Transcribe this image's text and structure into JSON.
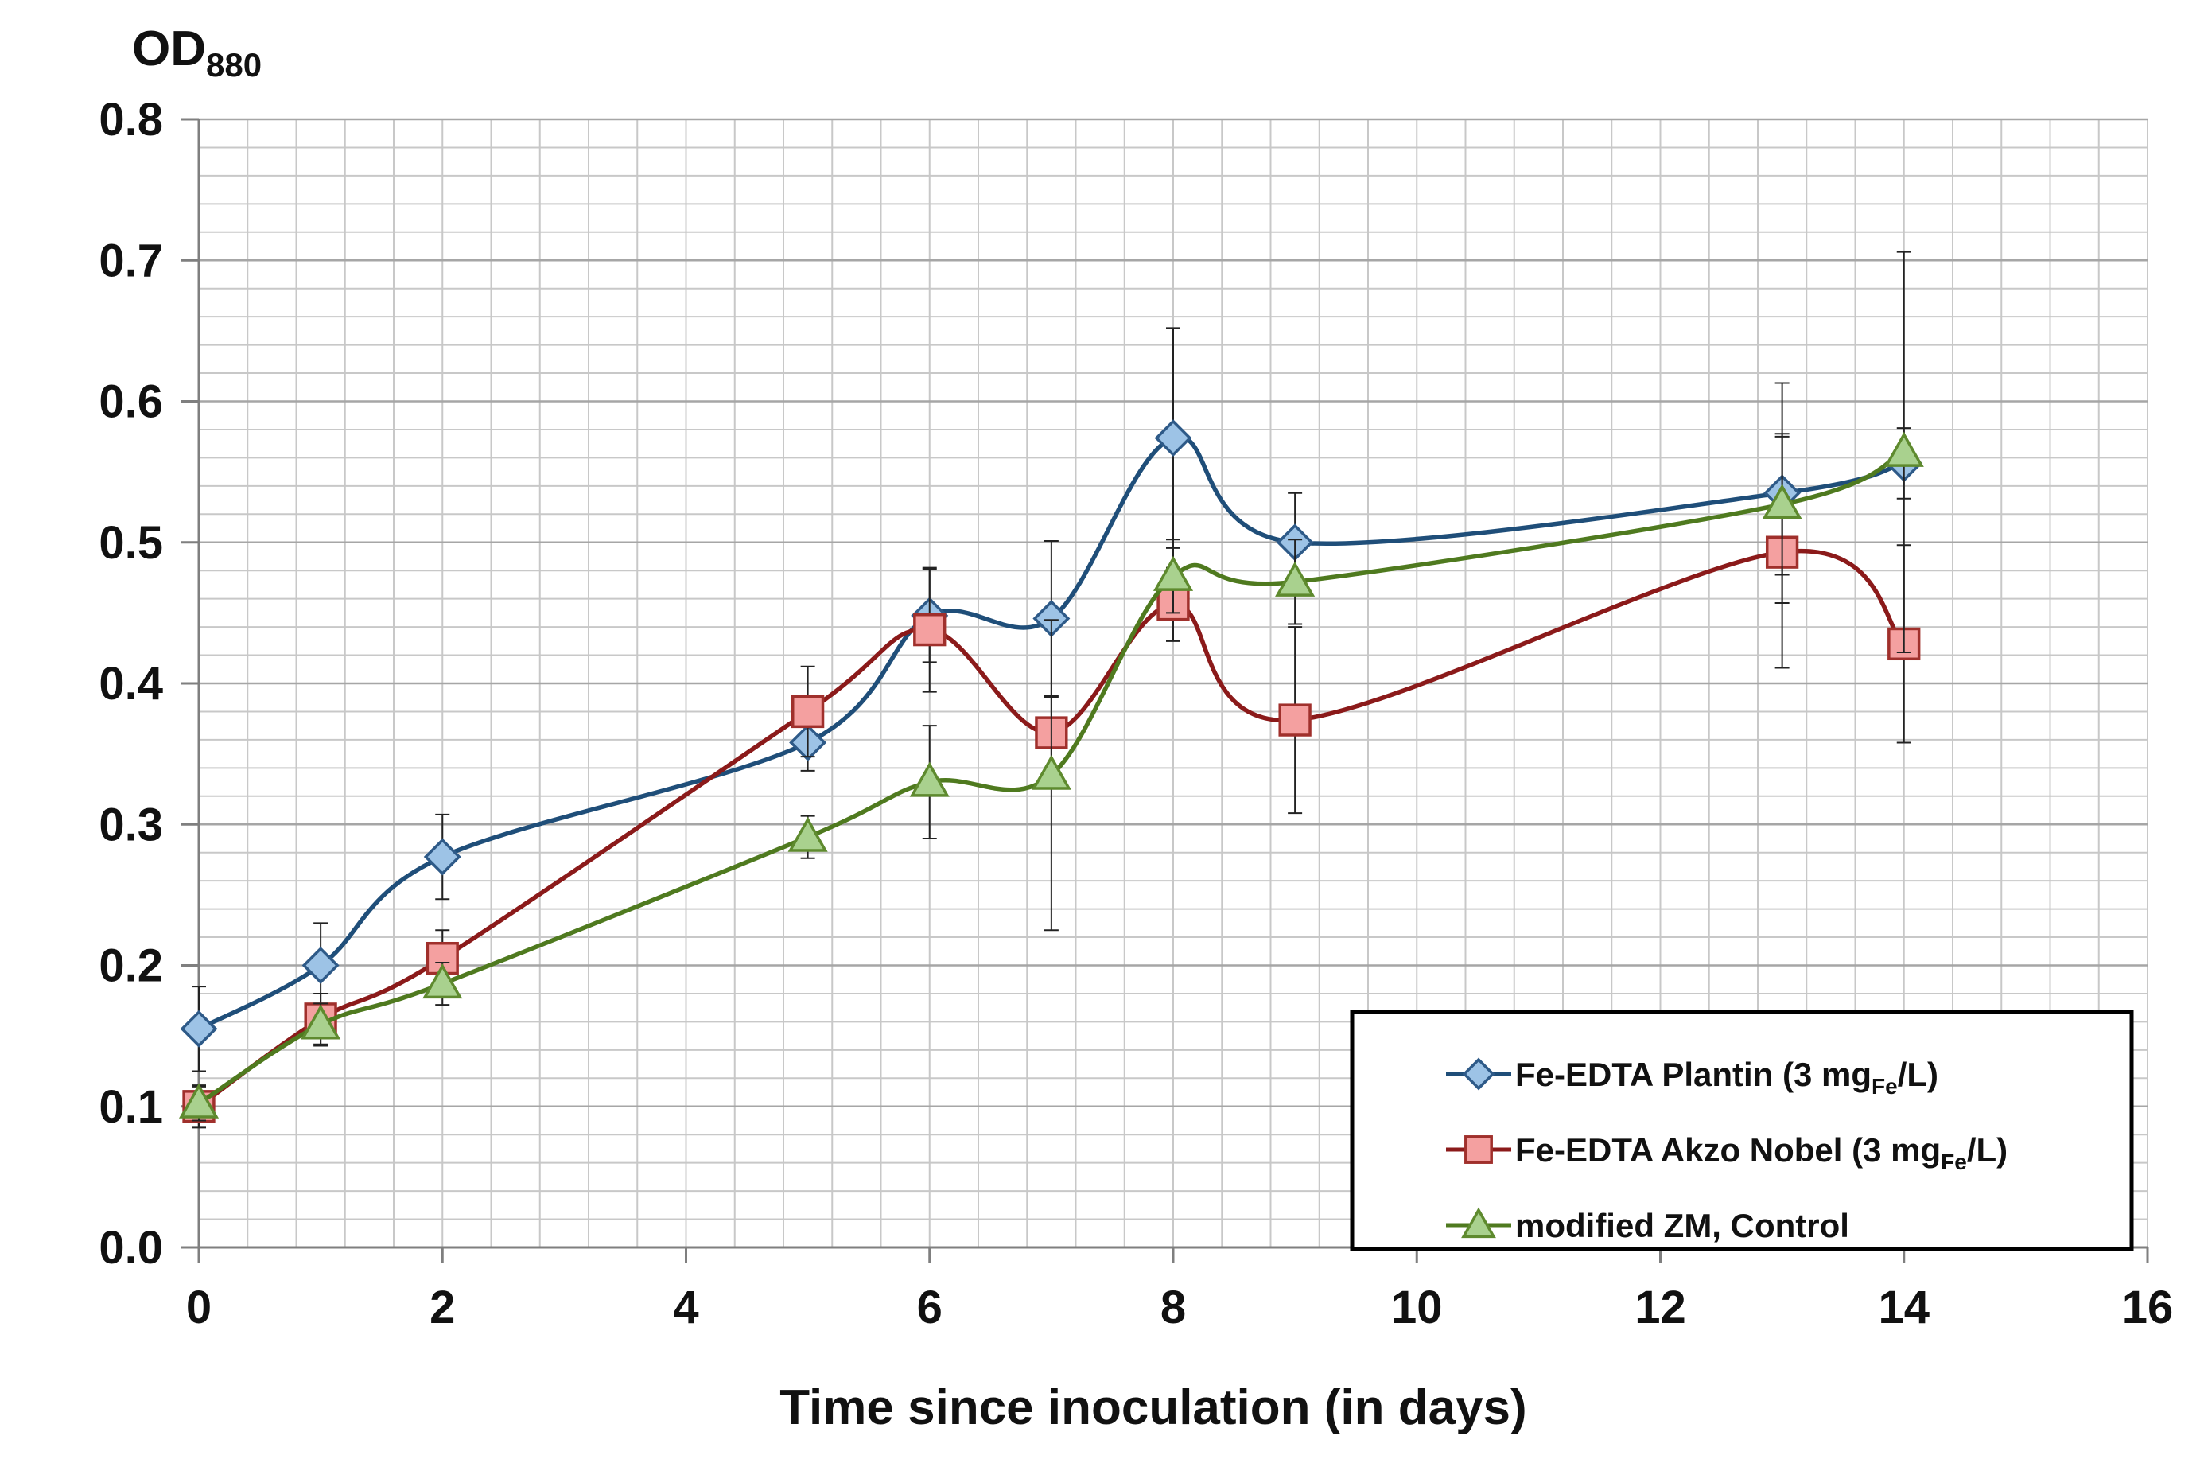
{
  "chart_data": {
    "type": "line",
    "title": "",
    "ylabel_main": "OD",
    "ylabel_sub": "880",
    "xlabel": "Time since inoculation (in days)",
    "xlim": [
      0,
      16
    ],
    "ylim": [
      0,
      0.8
    ],
    "x_ticks": [
      0,
      2,
      4,
      6,
      8,
      10,
      12,
      14,
      16
    ],
    "x_tick_labels": [
      "0",
      "2",
      "4",
      "6",
      "8",
      "10",
      "12",
      "14",
      "16"
    ],
    "y_ticks": [
      0,
      0.1,
      0.2,
      0.3,
      0.4,
      0.5,
      0.6,
      0.7,
      0.8
    ],
    "y_tick_labels": [
      "0.0",
      "0.1",
      "0.2",
      "0.3",
      "0.4",
      "0.5",
      "0.6",
      "0.7",
      "0.8"
    ],
    "grid": true,
    "x_minor_step": 0.4,
    "y_minor_step": 0.02,
    "legend_position": "bottom-right",
    "series": [
      {
        "name": "Fe-EDTA Plantin (3 mgFe/L)",
        "legend_text": "Fe-EDTA Plantin  (3 mg",
        "legend_sub": "Fe",
        "legend_suffix": "/L)",
        "marker": "diamond",
        "line_color": "#1F4E79",
        "fill_color": "#9DC3E6",
        "marker_stroke": "#2E5A88",
        "x": [
          0,
          1,
          2,
          5,
          6,
          7,
          8,
          9,
          13,
          14
        ],
        "values": [
          0.155,
          0.2,
          0.277,
          0.358,
          0.448,
          0.446,
          0.574,
          0.5,
          0.535,
          0.556
        ],
        "err": [
          0.03,
          0.03,
          0.03,
          0.02,
          0.033,
          0.055,
          0.078,
          0.035,
          0.078,
          0.025
        ]
      },
      {
        "name": "Fe-EDTA Akzo Nobel (3 mgFe/L)",
        "legend_text": "Fe-EDTA Akzo Nobel   (3 mg",
        "legend_sub": "Fe",
        "legend_suffix": "/L)",
        "marker": "square",
        "line_color": "#8B1A1A",
        "fill_color": "#F4A0A0",
        "marker_stroke": "#A0302C",
        "x": [
          0,
          1,
          2,
          5,
          6,
          7,
          8,
          9,
          13,
          14
        ],
        "values": [
          0.1,
          0.162,
          0.205,
          0.38,
          0.438,
          0.365,
          0.456,
          0.374,
          0.493,
          0.428
        ],
        "err": [
          0.015,
          0.018,
          0.02,
          0.032,
          0.044,
          0.025,
          0.026,
          0.066,
          0.082,
          0.07
        ]
      },
      {
        "name": "modified ZM, Control",
        "legend_text": "modified ZM, Control",
        "legend_sub": "",
        "legend_suffix": "",
        "marker": "triangle",
        "line_color": "#4F7A1F",
        "fill_color": "#A9D18E",
        "marker_stroke": "#5E8A2E",
        "x": [
          0,
          1,
          2,
          5,
          6,
          7,
          8,
          9,
          13,
          14
        ],
        "values": [
          0.102,
          0.158,
          0.187,
          0.291,
          0.33,
          0.335,
          0.476,
          0.472,
          0.527,
          0.564
        ],
        "err": [
          0.012,
          0.015,
          0.015,
          0.015,
          0.04,
          0.11,
          0.026,
          0.03,
          0.05,
          0.142
        ]
      }
    ]
  }
}
